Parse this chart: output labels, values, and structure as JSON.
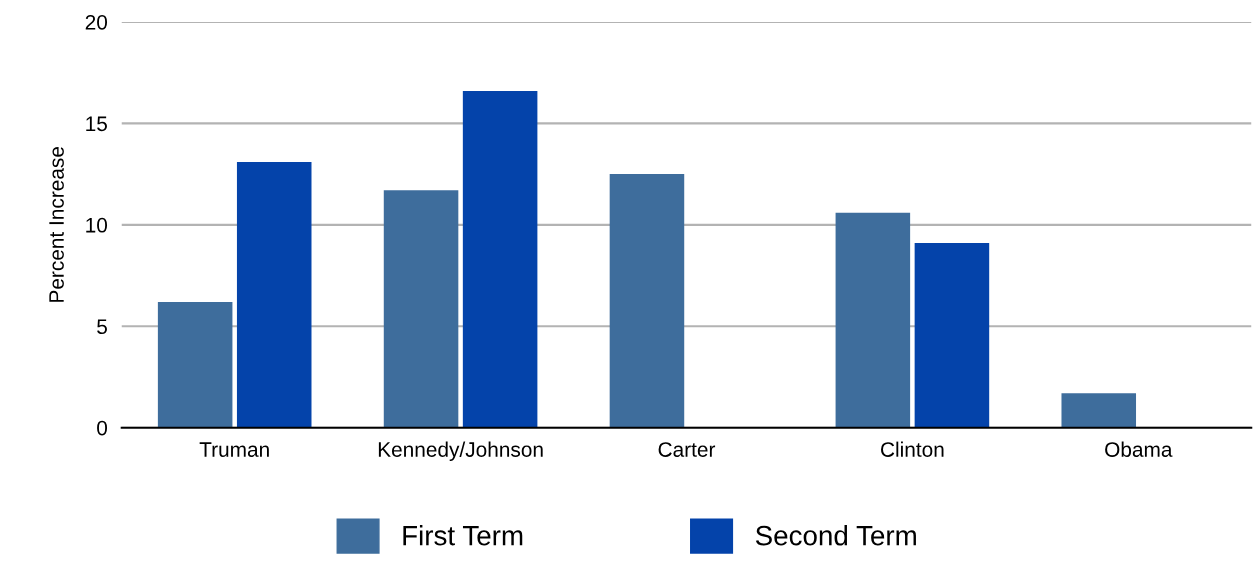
{
  "chart_data": {
    "type": "bar",
    "ylabel": "Percent Increase",
    "categories": [
      "Truman",
      "Kennedy/Johnson",
      "Carter",
      "Clinton",
      "Obama"
    ],
    "series": [
      {
        "name": "First Term",
        "color": "#3e6d9c",
        "values": [
          6.2,
          11.7,
          12.5,
          10.6,
          1.7
        ]
      },
      {
        "name": "Second Term",
        "color": "#0443aa",
        "values": [
          13.1,
          16.6,
          null,
          9.1,
          null
        ]
      }
    ],
    "ylim": [
      0,
      20
    ],
    "yticks": [
      0,
      5,
      10,
      15,
      20
    ],
    "grid": "y",
    "legend": "bottom"
  }
}
